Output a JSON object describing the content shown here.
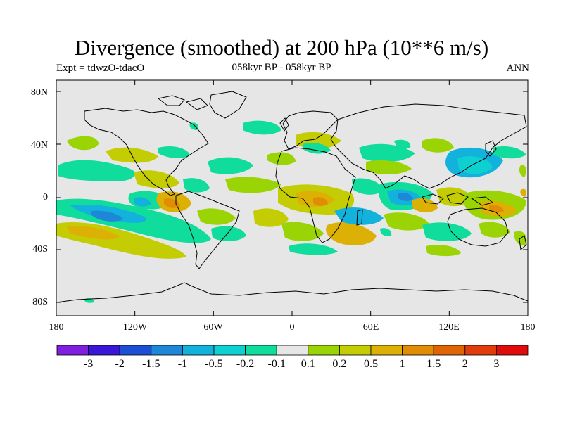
{
  "title": "Divergence (smoothed) at 200 hPa (10**6 m/s)",
  "subtitle_left": "Expt = tdwzO-tdacO",
  "subtitle_center": "058kyr BP - 058kyr BP",
  "subtitle_right": "ANN",
  "lat_ticks": [
    "80N",
    "40N",
    "0",
    "40S",
    "80S"
  ],
  "lon_ticks": [
    "180",
    "120W",
    "60W",
    "0",
    "60E",
    "120E",
    "180"
  ],
  "colorbar": {
    "colors": [
      "#7f1fe0",
      "#3a17d8",
      "#1c4fd6",
      "#1e88d8",
      "#12b2dc",
      "#0fd0d0",
      "#10dc9c",
      "#e6e6e6",
      "#9ad404",
      "#c4cc04",
      "#dcb004",
      "#e08c04",
      "#e06404",
      "#e03c0c",
      "#e00c0c"
    ],
    "labels": [
      "-3",
      "-2",
      "-1.5",
      "-1",
      "-0.5",
      "-0.2",
      "-0.1",
      "0.1",
      "0.2",
      "0.5",
      "1",
      "1.5",
      "2",
      "3"
    ]
  },
  "map": {
    "background": "#e6e6e6",
    "lon_range": [
      -180,
      180
    ],
    "lat_range": [
      -90,
      90
    ]
  }
}
